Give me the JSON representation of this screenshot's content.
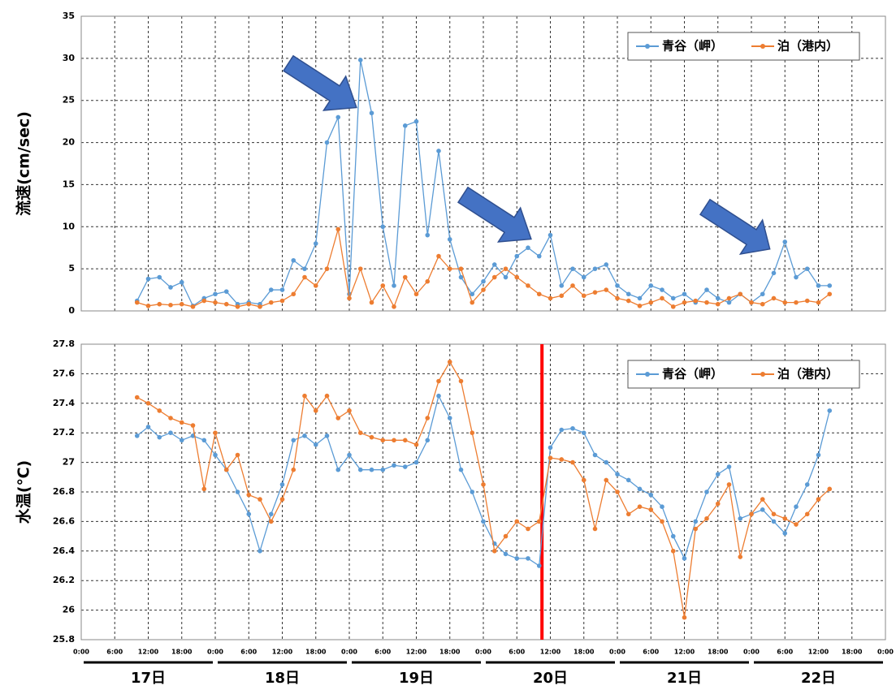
{
  "chart_data": [
    {
      "type": "line",
      "ylabel": "流速(cm/sec)",
      "ylim": [
        0,
        35
      ],
      "yticks": [
        0,
        5,
        10,
        15,
        20,
        25,
        30,
        35
      ],
      "xlim": [
        0,
        144
      ],
      "grid": true,
      "legend": "upper right",
      "x": [
        10,
        12,
        14,
        16,
        18,
        20,
        22,
        24,
        26,
        28,
        30,
        32,
        34,
        36,
        38,
        40,
        42,
        44,
        46,
        48,
        50,
        52,
        54,
        56,
        58,
        60,
        62,
        64,
        66,
        68,
        70,
        72,
        74,
        76,
        78,
        80,
        82,
        84,
        86,
        88,
        90,
        92,
        94,
        96,
        98,
        100,
        102,
        104,
        106,
        108,
        110,
        112,
        114,
        116,
        118,
        120,
        122,
        124,
        126,
        128,
        130,
        132,
        134
      ],
      "series": [
        {
          "name": "青谷（岬）",
          "color": "#5b9bd5",
          "values": [
            1.2,
            3.8,
            4,
            2.8,
            3.4,
            0.6,
            1.5,
            2,
            2.3,
            0.8,
            1,
            0.8,
            2.5,
            2.5,
            6,
            5,
            8,
            20,
            23,
            2,
            29.8,
            23.5,
            10,
            3,
            22,
            22.5,
            9,
            19,
            8.5,
            4,
            2,
            3.5,
            5.5,
            4,
            6.5,
            7.5,
            6.5,
            9,
            3,
            5,
            4,
            5,
            5.5,
            3,
            2,
            1.5,
            3,
            2.5,
            1.5,
            2,
            1,
            2.5,
            1.5,
            1,
            2,
            1,
            2,
            4.5,
            8.2,
            4,
            5,
            3,
            3
          ]
        },
        {
          "name": "泊（港内）",
          "color": "#ed7d31",
          "values": [
            1,
            0.6,
            0.8,
            0.7,
            0.8,
            0.5,
            1.2,
            1,
            0.8,
            0.5,
            0.8,
            0.5,
            1,
            1.2,
            2,
            4,
            3,
            5,
            9.7,
            1.5,
            5,
            1,
            3,
            0.5,
            4,
            2,
            3.5,
            6.5,
            5,
            5,
            1,
            2.5,
            4,
            5,
            4,
            3,
            2,
            1.5,
            1.8,
            3,
            1.8,
            2.2,
            2.5,
            1.5,
            1.2,
            0.6,
            1,
            1.5,
            0.5,
            1,
            1.2,
            1,
            0.8,
            1.5,
            2,
            1,
            0.8,
            1.5,
            1,
            1,
            1.2,
            1,
            2
          ]
        }
      ]
    },
    {
      "type": "line",
      "ylabel": "水温(℃)",
      "ylim": [
        25.8,
        27.8
      ],
      "yticks": [
        25.8,
        26,
        26.2,
        26.4,
        26.6,
        26.8,
        27,
        27.2,
        27.4,
        27.6,
        27.8
      ],
      "xlim": [
        0,
        144
      ],
      "grid": true,
      "legend": "upper right",
      "vline": 82.5,
      "vline_color": "#ff0000",
      "xticks": [
        {
          "value": 0,
          "label": "0:00"
        },
        {
          "value": 6,
          "label": "6:00"
        },
        {
          "value": 12,
          "label": "12:00"
        },
        {
          "value": 18,
          "label": "18:00"
        },
        {
          "value": 24,
          "label": "0:00"
        },
        {
          "value": 30,
          "label": "6:00"
        },
        {
          "value": 36,
          "label": "12:00"
        },
        {
          "value": 42,
          "label": "18:00"
        },
        {
          "value": 48,
          "label": "0:00"
        },
        {
          "value": 54,
          "label": "6:00"
        },
        {
          "value": 60,
          "label": "12:00"
        },
        {
          "value": 66,
          "label": "18:00"
        },
        {
          "value": 72,
          "label": "0:00"
        },
        {
          "value": 78,
          "label": "6:00"
        },
        {
          "value": 84,
          "label": "12:00"
        },
        {
          "value": 90,
          "label": "18:00"
        },
        {
          "value": 96,
          "label": "0:00"
        },
        {
          "value": 102,
          "label": "6:00"
        },
        {
          "value": 108,
          "label": "12:00"
        },
        {
          "value": 114,
          "label": "18:00"
        },
        {
          "value": 120,
          "label": "0:00"
        },
        {
          "value": 126,
          "label": "6:00"
        },
        {
          "value": 132,
          "label": "12:00"
        },
        {
          "value": 138,
          "label": "18:00"
        },
        {
          "value": 144,
          "label": "0:00"
        }
      ],
      "day_labels": [
        "17日",
        "18日",
        "19日",
        "20日",
        "21日",
        "22日"
      ],
      "x": [
        10,
        12,
        14,
        16,
        18,
        20,
        22,
        24,
        26,
        28,
        30,
        32,
        34,
        36,
        38,
        40,
        42,
        44,
        46,
        48,
        50,
        52,
        54,
        56,
        58,
        60,
        62,
        64,
        66,
        68,
        70,
        72,
        74,
        76,
        78,
        80,
        82,
        84,
        86,
        88,
        90,
        92,
        94,
        96,
        98,
        100,
        102,
        104,
        106,
        108,
        110,
        112,
        114,
        116,
        118,
        120,
        122,
        124,
        126,
        128,
        130,
        132,
        134
      ],
      "series": [
        {
          "name": "青谷（岬）",
          "color": "#5b9bd5",
          "values": [
            27.18,
            27.24,
            27.17,
            27.2,
            27.15,
            27.18,
            27.15,
            27.05,
            26.95,
            26.8,
            26.65,
            26.4,
            26.65,
            26.85,
            27.15,
            27.18,
            27.12,
            27.18,
            26.95,
            27.05,
            26.95,
            26.95,
            26.95,
            26.98,
            26.97,
            27.0,
            27.15,
            27.45,
            27.3,
            26.95,
            26.8,
            26.6,
            26.45,
            26.38,
            26.35,
            26.35,
            26.3,
            27.1,
            27.22,
            27.23,
            27.2,
            27.05,
            27.0,
            26.92,
            26.88,
            26.82,
            26.78,
            26.7,
            26.5,
            26.35,
            26.6,
            26.8,
            26.92,
            26.97,
            26.62,
            26.65,
            26.68,
            26.6,
            26.52,
            26.7,
            26.85,
            27.05,
            27.35
          ]
        },
        {
          "name": "泊（港内）",
          "color": "#ed7d31",
          "values": [
            27.44,
            27.4,
            27.35,
            27.3,
            27.27,
            27.25,
            26.82,
            27.2,
            26.95,
            27.05,
            26.78,
            26.75,
            26.6,
            26.75,
            26.95,
            27.45,
            27.35,
            27.45,
            27.3,
            27.35,
            27.2,
            27.17,
            27.15,
            27.15,
            27.15,
            27.12,
            27.3,
            27.55,
            27.68,
            27.55,
            27.2,
            26.85,
            26.4,
            26.5,
            26.6,
            26.55,
            26.6,
            27.03,
            27.02,
            27.0,
            26.88,
            26.55,
            26.88,
            26.8,
            26.65,
            26.7,
            26.68,
            26.6,
            26.4,
            25.95,
            26.55,
            26.62,
            26.72,
            26.85,
            26.36,
            26.65,
            26.75,
            26.65,
            26.62,
            26.58,
            26.65,
            26.75,
            26.82
          ]
        }
      ]
    }
  ]
}
